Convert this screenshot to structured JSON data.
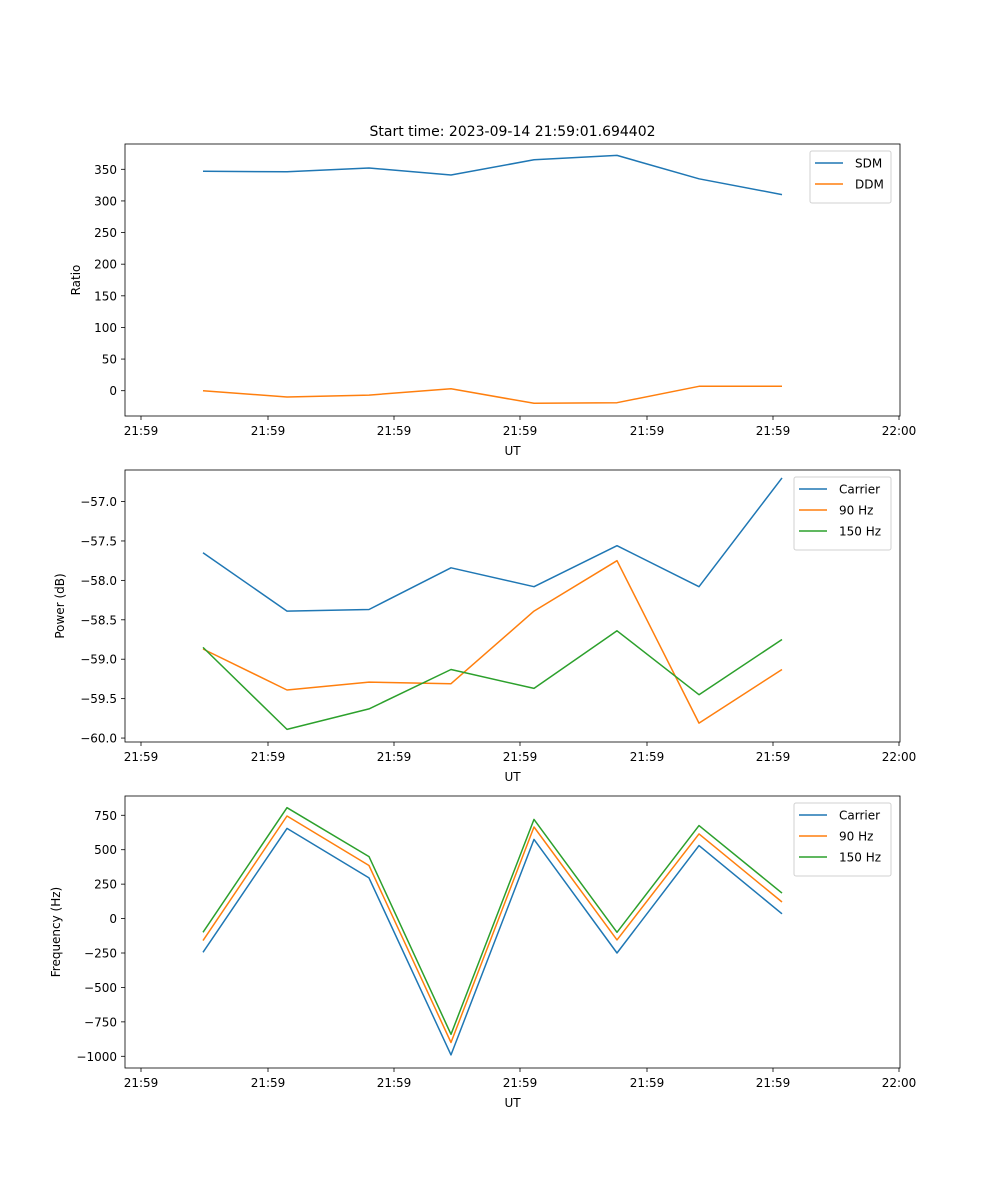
{
  "figure": {
    "title": "Start time: 2023-09-14 21:59:01.694402"
  },
  "chart_data": [
    {
      "type": "line",
      "title": "Start time: 2023-09-14 21:59:01.694402",
      "xlabel": "UT",
      "ylabel": "Ratio",
      "x_ticks": [
        "21:59",
        "21:59",
        "21:59",
        "21:59",
        "21:59",
        "21:59",
        "22:00"
      ],
      "y_ticks": [
        0,
        50,
        100,
        150,
        200,
        250,
        300,
        350
      ],
      "ylim": [
        -40,
        390
      ],
      "legend_position": "top-right",
      "series": [
        {
          "name": "SDM",
          "color": "#1f77b4",
          "values": [
            347,
            346,
            352,
            341,
            365,
            372,
            335,
            310
          ]
        },
        {
          "name": "DDM",
          "color": "#ff7f0e",
          "values": [
            0,
            -10,
            -7,
            3,
            -20,
            -19,
            7,
            7
          ]
        }
      ]
    },
    {
      "type": "line",
      "title": "",
      "xlabel": "UT",
      "ylabel": "Power (dB)",
      "x_ticks": [
        "21:59",
        "21:59",
        "21:59",
        "21:59",
        "21:59",
        "21:59",
        "22:00"
      ],
      "y_ticks": [
        "−60.0",
        "−59.5",
        "−59.0",
        "−58.5",
        "−58.0",
        "−57.5",
        "−57.0"
      ],
      "y_tick_values": [
        -60.0,
        -59.5,
        -59.0,
        -58.5,
        -58.0,
        -57.5,
        -57.0
      ],
      "ylim": [
        -60.05,
        -56.6
      ],
      "legend_position": "top-right",
      "series": [
        {
          "name": "Carrier",
          "color": "#1f77b4",
          "values": [
            -57.65,
            -58.39,
            -58.37,
            -57.84,
            -58.08,
            -57.56,
            -58.08,
            -56.7
          ]
        },
        {
          "name": "90 Hz",
          "color": "#ff7f0e",
          "values": [
            -58.87,
            -59.39,
            -59.29,
            -59.31,
            -58.39,
            -57.75,
            -59.81,
            -59.13
          ]
        },
        {
          "name": "150 Hz",
          "color": "#2ca02c",
          "values": [
            -58.85,
            -59.89,
            -59.63,
            -59.13,
            -59.37,
            -58.64,
            -59.45,
            -58.75
          ]
        }
      ]
    },
    {
      "type": "line",
      "title": "",
      "xlabel": "UT",
      "ylabel": "Frequency (Hz)",
      "x_ticks": [
        "21:59",
        "21:59",
        "21:59",
        "21:59",
        "21:59",
        "21:59",
        "22:00"
      ],
      "y_ticks": [
        "−1000",
        "−750",
        "−500",
        "−250",
        "0",
        "250",
        "500",
        "750"
      ],
      "y_tick_values": [
        -1000,
        -750,
        -500,
        -250,
        0,
        250,
        500,
        750
      ],
      "ylim": [
        -1085,
        890
      ],
      "legend_position": "top-right",
      "series": [
        {
          "name": "Carrier",
          "color": "#1f77b4",
          "values": [
            -245,
            655,
            295,
            -990,
            575,
            -250,
            530,
            35
          ]
        },
        {
          "name": "90 Hz",
          "color": "#ff7f0e",
          "values": [
            -160,
            745,
            385,
            -900,
            665,
            -155,
            615,
            120
          ]
        },
        {
          "name": "150 Hz",
          "color": "#2ca02c",
          "values": [
            -100,
            805,
            450,
            -840,
            720,
            -100,
            675,
            185
          ]
        }
      ]
    }
  ]
}
